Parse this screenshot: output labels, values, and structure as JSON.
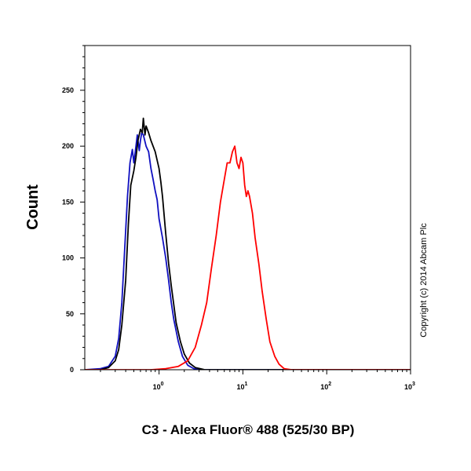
{
  "chart_data": {
    "type": "line",
    "title": "",
    "xlabel": "C3 - Alexa Fluor® 488 (525/30 BP)",
    "ylabel": "Count",
    "xscale": "log",
    "xlim": [
      0.13,
      1000
    ],
    "ylim": [
      0,
      290
    ],
    "y_ticks": [
      0,
      50,
      100,
      150,
      200,
      250
    ],
    "x_ticks": [
      {
        "base": "10",
        "exp": "0",
        "value": 1
      },
      {
        "base": "10",
        "exp": "1",
        "value": 10
      },
      {
        "base": "10",
        "exp": "2",
        "value": 100
      },
      {
        "base": "10",
        "exp": "3",
        "value": 1000
      }
    ],
    "legend": "none",
    "grid": false,
    "annotation": "Copyright (c) 2014 Abcam Plc",
    "series": [
      {
        "color": "#1010c0",
        "points": [
          [
            0.13,
            0
          ],
          [
            0.2,
            1
          ],
          [
            0.25,
            3
          ],
          [
            0.3,
            12
          ],
          [
            0.33,
            28
          ],
          [
            0.36,
            60
          ],
          [
            0.39,
            110
          ],
          [
            0.42,
            155
          ],
          [
            0.45,
            185
          ],
          [
            0.48,
            197
          ],
          [
            0.5,
            185
          ],
          [
            0.53,
            200
          ],
          [
            0.55,
            210
          ],
          [
            0.58,
            196
          ],
          [
            0.6,
            205
          ],
          [
            0.62,
            212
          ],
          [
            0.65,
            210
          ],
          [
            0.7,
            200
          ],
          [
            0.75,
            195
          ],
          [
            0.8,
            180
          ],
          [
            0.85,
            170
          ],
          [
            0.9,
            160
          ],
          [
            0.95,
            152
          ],
          [
            1.0,
            135
          ],
          [
            1.1,
            118
          ],
          [
            1.2,
            100
          ],
          [
            1.3,
            80
          ],
          [
            1.4,
            60
          ],
          [
            1.5,
            45
          ],
          [
            1.7,
            25
          ],
          [
            1.9,
            12
          ],
          [
            2.2,
            4
          ],
          [
            2.6,
            1
          ],
          [
            3.5,
            0
          ],
          [
            1000,
            0
          ]
        ]
      },
      {
        "color": "#000000",
        "points": [
          [
            0.13,
            0
          ],
          [
            0.2,
            0
          ],
          [
            0.25,
            2
          ],
          [
            0.3,
            8
          ],
          [
            0.33,
            18
          ],
          [
            0.36,
            40
          ],
          [
            0.4,
            80
          ],
          [
            0.43,
            130
          ],
          [
            0.46,
            165
          ],
          [
            0.5,
            178
          ],
          [
            0.53,
            190
          ],
          [
            0.56,
            205
          ],
          [
            0.6,
            215
          ],
          [
            0.63,
            212
          ],
          [
            0.65,
            225
          ],
          [
            0.68,
            210
          ],
          [
            0.7,
            218
          ],
          [
            0.75,
            212
          ],
          [
            0.8,
            205
          ],
          [
            0.9,
            195
          ],
          [
            1.0,
            180
          ],
          [
            1.05,
            168
          ],
          [
            1.1,
            155
          ],
          [
            1.2,
            122
          ],
          [
            1.3,
            95
          ],
          [
            1.4,
            75
          ],
          [
            1.5,
            58
          ],
          [
            1.6,
            42
          ],
          [
            1.8,
            25
          ],
          [
            2.0,
            14
          ],
          [
            2.3,
            6
          ],
          [
            2.7,
            2
          ],
          [
            3.5,
            0
          ],
          [
            1000,
            0
          ]
        ]
      },
      {
        "color": "#ff0000",
        "points": [
          [
            0.13,
            0
          ],
          [
            0.8,
            0
          ],
          [
            1.2,
            1
          ],
          [
            1.7,
            3
          ],
          [
            2.2,
            8
          ],
          [
            2.7,
            20
          ],
          [
            3.2,
            40
          ],
          [
            3.7,
            60
          ],
          [
            4.2,
            90
          ],
          [
            4.8,
            120
          ],
          [
            5.4,
            150
          ],
          [
            6.0,
            170
          ],
          [
            6.5,
            185
          ],
          [
            7.0,
            185
          ],
          [
            7.5,
            195
          ],
          [
            8.0,
            200
          ],
          [
            8.5,
            185
          ],
          [
            9.0,
            180
          ],
          [
            9.5,
            190
          ],
          [
            10,
            185
          ],
          [
            10.5,
            165
          ],
          [
            11,
            155
          ],
          [
            11.5,
            160
          ],
          [
            12,
            155
          ],
          [
            13,
            140
          ],
          [
            14,
            118
          ],
          [
            15.5,
            95
          ],
          [
            17,
            70
          ],
          [
            19,
            45
          ],
          [
            21,
            25
          ],
          [
            24,
            12
          ],
          [
            27,
            5
          ],
          [
            31,
            1
          ],
          [
            38,
            0
          ],
          [
            1000,
            0
          ]
        ]
      }
    ]
  }
}
